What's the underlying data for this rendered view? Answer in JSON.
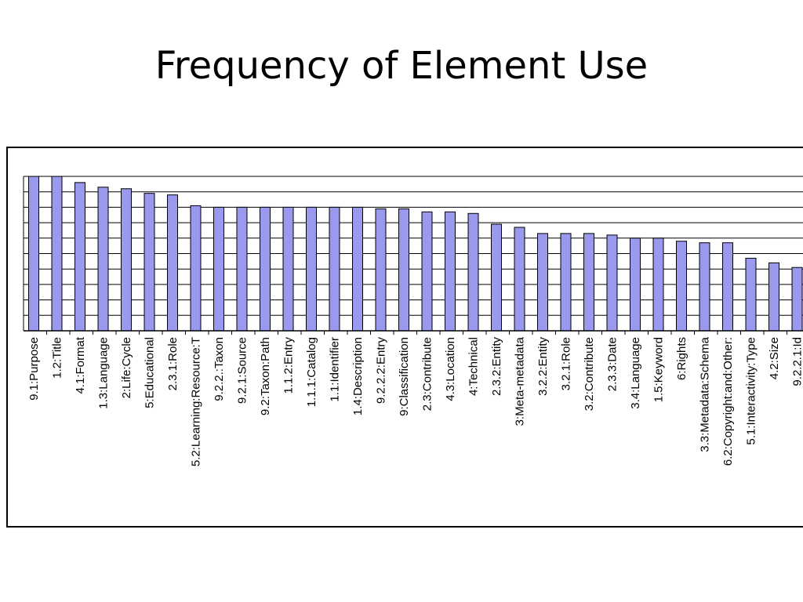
{
  "slide": {
    "title": "Frequency of Element Use"
  },
  "colors": {
    "bar_fill": "#9999ee",
    "bar_stroke": "#000000",
    "grid": "#000000",
    "plot_bg": "#ffffff"
  },
  "chart_data": {
    "type": "bar",
    "title": "Frequency of Element Use",
    "xlabel": "",
    "ylabel": "",
    "grid": true,
    "ylim": [
      0,
      100
    ],
    "categories": [
      "9.1:Purpose",
      "1.2:Title",
      "4.1:Format",
      "1.3:Language",
      "2:Life:Cycle",
      "5:Educational",
      "2.3.1:Role",
      "5.2:Learning:Resource:T",
      "9.2.2.:Taxon",
      "9.2.1:Source",
      "9.2:Taxon:Path",
      "1.1.2:Entry",
      "1.1.1:Catalog",
      "1.1:Identifier",
      "1.4:Description",
      "9.2.2.2:Entry",
      "9:Classification",
      "2.3:Contribute",
      "4.3:Location",
      "4:Technical",
      "2.3.2:Entity",
      "3:Meta-metadata",
      "3.2.2:Entity",
      "3.2.1:Role",
      "3.2:Contribute",
      "2.3.3:Date",
      "3.4:Language",
      "1.5:Keyword",
      "6:Rights",
      "3.3:Metadata:Schema",
      "6.2:Copyright:and:Other:",
      "5.1:Interactivity:Type",
      "4.2:Size",
      "9.2.2.1:Id"
    ],
    "values": [
      100,
      100,
      96,
      93,
      92,
      89,
      88,
      81,
      80,
      80,
      80,
      80,
      80,
      80,
      80,
      79,
      79,
      77,
      77,
      76,
      69,
      67,
      63,
      63,
      63,
      62,
      60,
      60,
      58,
      57,
      57,
      47,
      44,
      41
    ]
  }
}
